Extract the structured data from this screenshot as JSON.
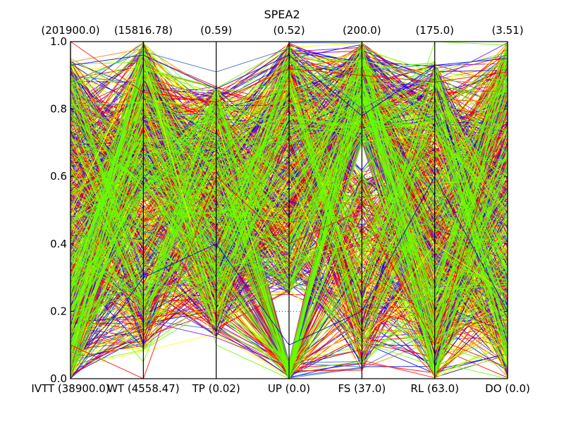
{
  "chart_data": {
    "type": "parallel-coordinates",
    "title": "SPEA2",
    "ylim": [
      0,
      1
    ],
    "y_ticks": [
      "0.0",
      "0.2",
      "0.4",
      "0.6",
      "0.8",
      "1.0"
    ],
    "grid": "dotted horizontal",
    "axes": [
      {
        "bottom_label": "IVTT (38900.0)",
        "top_label": "(201900.0)"
      },
      {
        "bottom_label": "WT (4558.47)",
        "top_label": "(15816.78)"
      },
      {
        "bottom_label": "TP (0.02)",
        "top_label": "(0.59)"
      },
      {
        "bottom_label": "UP (0.0)",
        "top_label": "(0.52)"
      },
      {
        "bottom_label": "FS (37.0)",
        "top_label": "(200.0)"
      },
      {
        "bottom_label": "RL (63.0)",
        "top_label": "(175.0)"
      },
      {
        "bottom_label": "DO (0.0)",
        "top_label": "(3.51)"
      }
    ],
    "series_colors": [
      "#0000dd",
      "#ff0000",
      "#ffff00",
      "#ff8000",
      "#7f00ff",
      "#3366cc",
      "#66ff00"
    ],
    "representative_lines": [
      {
        "color": "#0000dd",
        "values": [
          0.93,
          0.96,
          0.86,
          0.96,
          0.78,
          0.93,
          0.95
        ]
      },
      {
        "color": "#3366cc",
        "values": [
          0.88,
          0.97,
          0.91,
          0.98,
          0.8,
          0.92,
          0.96
        ]
      },
      {
        "color": "#ff0000",
        "values": [
          1.0,
          0.85,
          0.82,
          0.92,
          0.9,
          0.88,
          0.91
        ]
      },
      {
        "color": "#66ff00",
        "values": [
          0.3,
          0.05,
          0.58,
          0.0,
          0.35,
          1.0,
          0.99
        ]
      },
      {
        "color": "#ffff00",
        "values": [
          0.5,
          0.95,
          0.2,
          0.6,
          0.1,
          0.4,
          0.25
        ]
      },
      {
        "color": "#0000dd",
        "values": [
          0.0,
          0.3,
          0.4,
          0.1,
          0.2,
          0.6,
          0.2
        ]
      },
      {
        "color": "#ff0000",
        "values": [
          0.1,
          0.0,
          0.6,
          0.4,
          0.5,
          0.1,
          0.8
        ]
      },
      {
        "color": "#66ff00",
        "values": [
          0.6,
          0.95,
          0.1,
          0.0,
          0.9,
          0.05,
          0.0
        ]
      }
    ]
  }
}
